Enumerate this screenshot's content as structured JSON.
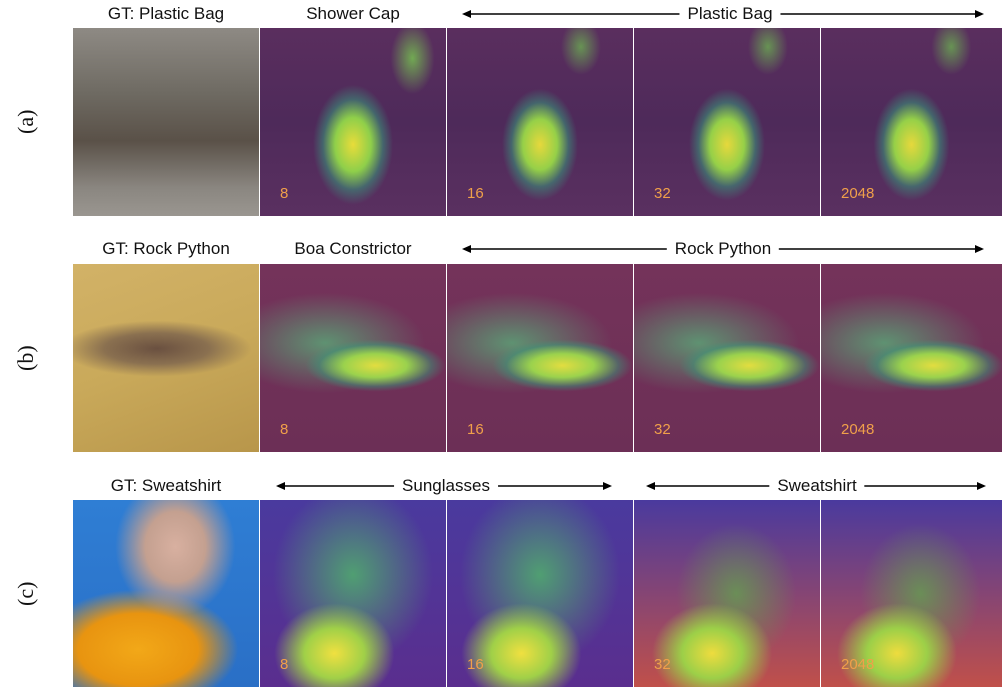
{
  "rows": [
    {
      "label": "(a)",
      "gt_caption": "GT: Plastic Bag",
      "first_pred": "Shower Cap",
      "span_pred": "Plastic Bag",
      "numbers": [
        "8",
        "16",
        "32",
        "2048"
      ]
    },
    {
      "label": "(b)",
      "gt_caption": "GT: Rock Python",
      "first_pred": "Boa Constrictor",
      "span_pred": "Rock Python",
      "numbers": [
        "8",
        "16",
        "32",
        "2048"
      ]
    },
    {
      "label": "(c)",
      "gt_caption": "GT: Sweatshirt",
      "left_pred": "Sunglasses",
      "right_pred": "Sweatshirt",
      "numbers": [
        "8",
        "16",
        "32",
        "2048"
      ]
    }
  ],
  "colors": {
    "number_text": "#f0a04a",
    "heatmap_low": "#4e2a5a",
    "heatmap_high": "#e8dc3a"
  }
}
